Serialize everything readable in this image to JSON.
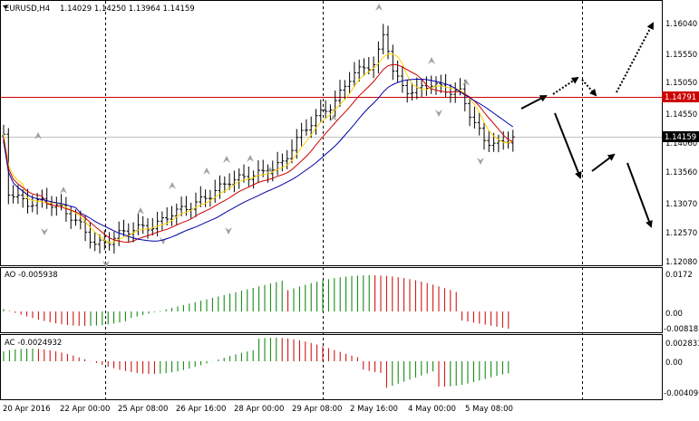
{
  "header": {
    "symbol": "EURUSD,H4",
    "ohlc": "1.14029 1.14250 1.13964 1.14159"
  },
  "main_chart": {
    "price_axis": [
      "1.16040",
      "1.15550",
      "1.15050",
      "1.14550",
      "1.14060",
      "1.13560",
      "1.13070",
      "1.12570",
      "1.12080"
    ],
    "horizontal_line_label": "1.14791",
    "current_price_label": "1.14159"
  },
  "ao_panel": {
    "label": "AO -0.005938",
    "axis": [
      "0.0172",
      "0.00",
      "-0.00818"
    ]
  },
  "ac_panel": {
    "label": "AC -0.0024932",
    "axis": [
      "0.002833",
      "0.00",
      "-0.004096"
    ]
  },
  "time_axis": [
    "20 Apr 2016",
    "22 Apr 00:00",
    "25 Apr 08:00",
    "26 Apr 16:00",
    "28 Apr 00:00",
    "29 Apr 08:00",
    "2 May 16:00",
    "4 May 00:00",
    "5 May 08:00"
  ],
  "colors": {
    "bull": "#008000",
    "bear": "#cc0000",
    "ma_fast": "#ffd400",
    "ma_mid": "#cc0000",
    "ma_slow": "#0000aa",
    "hline": "#cc0000",
    "price_box": "#000000"
  }
}
